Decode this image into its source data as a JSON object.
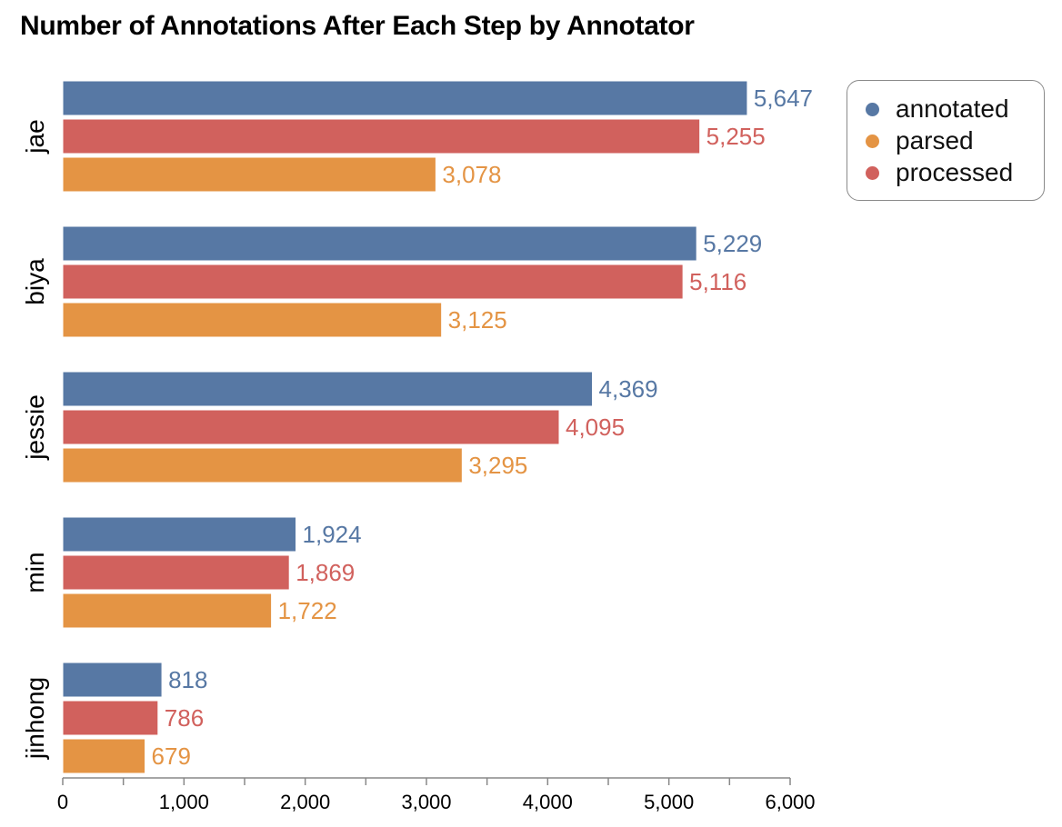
{
  "chart_data": {
    "type": "bar",
    "orientation": "horizontal",
    "grouped": true,
    "title": "Number of Annotations After Each Step by Annotator",
    "xlabel": "",
    "ylabel": "",
    "categories": [
      "jae",
      "biya",
      "jessie",
      "min",
      "jinhong"
    ],
    "xlim": [
      0,
      6000
    ],
    "xticks": [
      0,
      1000,
      2000,
      3000,
      4000,
      5000,
      6000
    ],
    "xtick_labels": [
      "0",
      "1,000",
      "2,000",
      "3,000",
      "4,000",
      "5,000",
      "6,000"
    ],
    "grid": false,
    "legend_position": "top-right",
    "series": [
      {
        "name": "annotated",
        "color": "#5778a4",
        "values": [
          5647,
          5229,
          4369,
          1924,
          818
        ],
        "labels": [
          "5,647",
          "5,229",
          "4,369",
          "1,924",
          "818"
        ]
      },
      {
        "name": "processed",
        "color": "#d1615d",
        "values": [
          5255,
          5116,
          4095,
          1869,
          786
        ],
        "labels": [
          "5,255",
          "5,116",
          "4,095",
          "1,869",
          "786"
        ]
      },
      {
        "name": "parsed",
        "color": "#e49444",
        "values": [
          3078,
          3125,
          3295,
          1722,
          679
        ],
        "labels": [
          "3,078",
          "3,125",
          "3,295",
          "1,722",
          "679"
        ]
      }
    ],
    "legend": [
      {
        "name": "annotated",
        "color": "#5778a4"
      },
      {
        "name": "parsed",
        "color": "#e49444"
      },
      {
        "name": "processed",
        "color": "#d1615d"
      }
    ]
  }
}
